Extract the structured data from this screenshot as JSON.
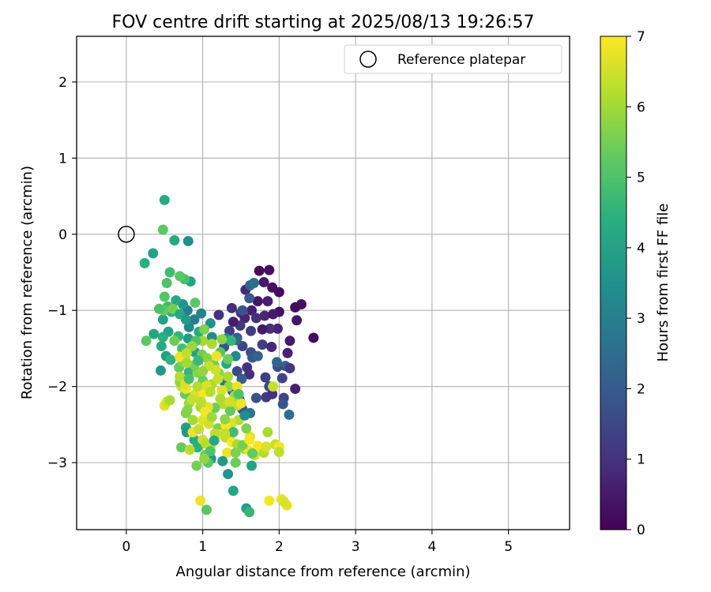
{
  "chart_data": {
    "type": "scatter",
    "title": "FOV centre drift starting at 2025/08/13 19:26:57",
    "xlabel": "Angular distance from reference (arcmin)",
    "ylabel": "Rotation from reference (arcmin)",
    "xlim": [
      -0.65,
      5.8
    ],
    "ylim": [
      -3.88,
      2.6
    ],
    "xticks": [
      0,
      1,
      2,
      3,
      4,
      5
    ],
    "yticks": [
      -3,
      -2,
      -1,
      0,
      1,
      2
    ],
    "xtick_labels": [
      "0",
      "1",
      "2",
      "3",
      "4",
      "5"
    ],
    "ytick_labels": [
      "−3",
      "−2",
      "−1",
      "0",
      "1",
      "2"
    ],
    "grid": true,
    "legend": {
      "placement": "top-right",
      "entries": [
        "Reference platepar"
      ]
    },
    "reference_point": {
      "x": 0,
      "y": 0,
      "label": "Reference platepar"
    },
    "colorbar": {
      "label": "Hours from first FF file",
      "colormap": "viridis",
      "range": [
        0,
        7
      ],
      "ticks": [
        0,
        1,
        2,
        3,
        4,
        5,
        6,
        7
      ],
      "tick_labels": [
        "0",
        "1",
        "2",
        "3",
        "4",
        "5",
        "6",
        "7"
      ]
    },
    "points": [
      [
        1.74,
        -0.48,
        0.2
      ],
      [
        1.87,
        -0.47,
        0.3
      ],
      [
        1.8,
        -0.63,
        0.5
      ],
      [
        1.91,
        -0.7,
        0.3
      ],
      [
        2.0,
        -0.76,
        0.2
      ],
      [
        1.56,
        -0.73,
        0.8
      ],
      [
        1.72,
        -0.88,
        0.4
      ],
      [
        1.85,
        -0.88,
        0.6
      ],
      [
        2.0,
        -1.02,
        0.3
      ],
      [
        1.64,
        -1.0,
        0.6
      ],
      [
        1.5,
        -1.03,
        0.9
      ],
      [
        1.55,
        -1.1,
        0.7
      ],
      [
        1.7,
        -1.1,
        1.0
      ],
      [
        1.81,
        -1.07,
        0.8
      ],
      [
        1.92,
        -1.05,
        0.5
      ],
      [
        2.21,
        -0.96,
        0.2
      ],
      [
        2.29,
        -0.92,
        0.3
      ],
      [
        2.23,
        -1.13,
        0.4
      ],
      [
        2.45,
        -1.36,
        0.2
      ],
      [
        2.14,
        -1.4,
        0.5
      ],
      [
        1.98,
        -1.24,
        0.7
      ],
      [
        1.88,
        -1.24,
        0.9
      ],
      [
        1.78,
        -1.25,
        0.5
      ],
      [
        1.63,
        -1.27,
        1.2
      ],
      [
        1.49,
        -1.2,
        1.1
      ],
      [
        1.4,
        -1.15,
        0.6
      ],
      [
        1.38,
        -0.97,
        0.9
      ],
      [
        1.21,
        -1.06,
        1.0
      ],
      [
        1.35,
        -1.27,
        1.3
      ],
      [
        1.45,
        -1.36,
        2.0
      ],
      [
        1.52,
        -1.47,
        1.5
      ],
      [
        1.63,
        -1.55,
        1.7
      ],
      [
        1.78,
        -1.45,
        1.3
      ],
      [
        1.9,
        -1.48,
        0.8
      ],
      [
        2.11,
        -1.56,
        0.7
      ],
      [
        1.82,
        -1.88,
        1.3
      ],
      [
        1.87,
        -2.0,
        1.5
      ],
      [
        1.83,
        -2.14,
        1.2
      ],
      [
        1.91,
        -2.1,
        1.0
      ],
      [
        2.06,
        -2.15,
        1.4
      ],
      [
        2.05,
        -2.23,
        1.8
      ],
      [
        2.21,
        -2.03,
        0.6
      ],
      [
        2.08,
        -1.73,
        2.1
      ],
      [
        1.98,
        -1.74,
        1.6
      ],
      [
        2.14,
        -1.76,
        1.1
      ],
      [
        2.04,
        -1.89,
        1.4
      ],
      [
        1.97,
        -1.68,
        2.3
      ],
      [
        1.62,
        -0.67,
        2.3
      ],
      [
        1.67,
        -0.64,
        2.5
      ],
      [
        1.61,
        -0.84,
        2.0
      ],
      [
        1.52,
        -1.0,
        1.8
      ],
      [
        1.44,
        -1.39,
        2.4
      ],
      [
        1.28,
        -1.48,
        1.8
      ],
      [
        1.65,
        -1.62,
        1.9
      ],
      [
        1.58,
        -1.75,
        1.0
      ],
      [
        1.45,
        -1.8,
        1.5
      ],
      [
        1.61,
        -1.84,
        0.9
      ],
      [
        1.72,
        -1.6,
        2.2
      ],
      [
        1.39,
        -2.06,
        2.2
      ],
      [
        1.48,
        -2.17,
        1.6
      ],
      [
        1.52,
        -2.3,
        1.9
      ],
      [
        1.62,
        -2.35,
        2.7
      ],
      [
        1.7,
        -2.15,
        1.7
      ],
      [
        2.13,
        -2.37,
        2.5
      ],
      [
        1.51,
        -1.9,
        2.1
      ],
      [
        1.29,
        -1.95,
        2.8
      ],
      [
        1.43,
        -1.6,
        3.2
      ],
      [
        1.12,
        -1.35,
        3.3
      ],
      [
        1.1,
        -1.17,
        3.5
      ],
      [
        1.31,
        -1.37,
        3.6
      ],
      [
        0.98,
        -1.04,
        3.1
      ],
      [
        0.89,
        -1.12,
        2.9
      ],
      [
        0.82,
        -1.22,
        3.2
      ],
      [
        0.8,
        -1.0,
        3.0
      ],
      [
        0.74,
        -0.92,
        3.6
      ],
      [
        0.65,
        -0.87,
        4.2
      ],
      [
        0.84,
        -0.62,
        4.0
      ],
      [
        0.81,
        -0.09,
        3.4
      ],
      [
        0.63,
        -0.08,
        4.2
      ],
      [
        0.76,
        -0.59,
        4.9
      ],
      [
        0.7,
        -0.55,
        5.2
      ],
      [
        0.5,
        0.45,
        4.3
      ],
      [
        0.48,
        0.06,
        5.2
      ],
      [
        0.35,
        -0.25,
        4.0
      ],
      [
        0.24,
        -0.38,
        4.4
      ],
      [
        0.57,
        -0.5,
        4.8
      ],
      [
        0.53,
        -0.64,
        5.0
      ],
      [
        0.5,
        -0.82,
        5.1
      ],
      [
        0.54,
        -0.95,
        4.8
      ],
      [
        0.59,
        -1.02,
        4.5
      ],
      [
        0.48,
        -1.12,
        4.0
      ],
      [
        0.49,
        -1.0,
        5.3
      ],
      [
        0.43,
        -0.98,
        5.0
      ],
      [
        0.61,
        -0.98,
        5.5
      ],
      [
        0.7,
        -1.05,
        4.2
      ],
      [
        0.78,
        -1.12,
        3.8
      ],
      [
        0.9,
        -0.9,
        5.2
      ],
      [
        0.95,
        -1.28,
        4.3
      ],
      [
        1.02,
        -1.25,
        5.6
      ],
      [
        0.81,
        -1.37,
        3.8
      ],
      [
        0.68,
        -1.34,
        4.6
      ],
      [
        0.55,
        -1.28,
        4.0
      ],
      [
        0.48,
        -1.35,
        4.4
      ],
      [
        0.63,
        -1.4,
        5.4
      ],
      [
        0.73,
        -1.5,
        4.9
      ],
      [
        0.52,
        -1.6,
        3.9
      ],
      [
        0.46,
        -1.47,
        4.3
      ],
      [
        0.26,
        -1.4,
        5.2
      ],
      [
        0.36,
        -1.31,
        4.1
      ],
      [
        0.45,
        -1.79,
        3.7
      ],
      [
        0.58,
        -1.65,
        4.5
      ],
      [
        0.69,
        -1.75,
        5.3
      ],
      [
        0.82,
        -1.81,
        4.6
      ],
      [
        0.74,
        -1.68,
        5.6
      ],
      [
        0.9,
        -1.55,
        4.0
      ],
      [
        0.99,
        -1.58,
        5.5
      ],
      [
        1.06,
        -1.63,
        5.7
      ],
      [
        1.15,
        -1.72,
        5.5
      ],
      [
        1.21,
        -1.82,
        5.8
      ],
      [
        1.31,
        -1.7,
        4.2
      ],
      [
        1.33,
        -1.64,
        5.4
      ],
      [
        1.23,
        -1.55,
        5.1
      ],
      [
        1.37,
        -1.4,
        4.6
      ],
      [
        1.25,
        -1.38,
        5.8
      ],
      [
        1.12,
        -1.44,
        6.1
      ],
      [
        1.0,
        -1.4,
        6.0
      ],
      [
        0.91,
        -1.4,
        5.0
      ],
      [
        0.86,
        -1.47,
        5.9
      ],
      [
        0.77,
        -1.62,
        6.5
      ],
      [
        0.7,
        -1.61,
        6.8
      ],
      [
        0.79,
        -1.56,
        6.3
      ],
      [
        0.93,
        -1.82,
        5.7
      ],
      [
        1.0,
        -1.92,
        5.4
      ],
      [
        1.12,
        -1.97,
        6.1
      ],
      [
        1.2,
        -1.9,
        6.4
      ],
      [
        1.34,
        -2.0,
        5.8
      ],
      [
        1.42,
        -2.12,
        6.0
      ],
      [
        1.45,
        -2.25,
        6.4
      ],
      [
        1.5,
        -2.22,
        6.8
      ],
      [
        1.36,
        -2.32,
        5.3
      ],
      [
        1.27,
        -2.23,
        6.2
      ],
      [
        1.16,
        -2.28,
        5.4
      ],
      [
        1.07,
        -2.27,
        6.7
      ],
      [
        0.97,
        -2.27,
        6.1
      ],
      [
        0.82,
        -2.22,
        5.9
      ],
      [
        0.77,
        -2.1,
        5.3
      ],
      [
        0.72,
        -2.0,
        6.5
      ],
      [
        0.78,
        -2.03,
        6.9
      ],
      [
        0.9,
        -2.1,
        6.6
      ],
      [
        1.01,
        -2.08,
        6.9
      ],
      [
        1.07,
        -2.07,
        7.0
      ],
      [
        1.05,
        -1.99,
        6.6
      ],
      [
        0.93,
        -2.0,
        6.2
      ],
      [
        0.7,
        -1.94,
        5.8
      ],
      [
        0.78,
        -2.35,
        5.6
      ],
      [
        0.8,
        -2.31,
        5.7
      ],
      [
        0.87,
        -2.44,
        6.0
      ],
      [
        0.78,
        -2.54,
        4.0
      ],
      [
        0.79,
        -2.6,
        3.7
      ],
      [
        0.89,
        -2.7,
        4.3
      ],
      [
        0.93,
        -2.8,
        4.4
      ],
      [
        1.0,
        -2.7,
        6.5
      ],
      [
        1.04,
        -2.75,
        6.2
      ],
      [
        1.1,
        -2.8,
        6.3
      ],
      [
        1.03,
        -2.9,
        5.5
      ],
      [
        1.11,
        -2.95,
        3.8
      ],
      [
        1.07,
        -3.0,
        5.2
      ],
      [
        0.92,
        -3.04,
        5.5
      ],
      [
        0.72,
        -2.8,
        5.3
      ],
      [
        0.83,
        -2.83,
        6.2
      ],
      [
        0.87,
        -2.6,
        6.8
      ],
      [
        0.95,
        -2.56,
        6.4
      ],
      [
        1.0,
        -2.44,
        6.7
      ],
      [
        1.08,
        -2.49,
        6.5
      ],
      [
        1.03,
        -2.33,
        6.9
      ],
      [
        1.12,
        -2.4,
        6.0
      ],
      [
        1.2,
        -2.55,
        5.6
      ],
      [
        1.24,
        -2.63,
        6.8
      ],
      [
        1.3,
        -2.67,
        6.3
      ],
      [
        1.38,
        -2.73,
        7.0
      ],
      [
        1.45,
        -2.76,
        6.1
      ],
      [
        1.55,
        -2.82,
        5.9
      ],
      [
        1.6,
        -2.84,
        6.8
      ],
      [
        1.68,
        -2.9,
        6.5
      ],
      [
        1.72,
        -2.78,
        6.9
      ],
      [
        1.8,
        -2.87,
        6.2
      ],
      [
        1.83,
        -2.79,
        6.6
      ],
      [
        1.95,
        -2.76,
        6.4
      ],
      [
        2.0,
        -2.79,
        6.9
      ],
      [
        2.0,
        -2.86,
        6.3
      ],
      [
        1.85,
        -2.6,
        6.1
      ],
      [
        1.62,
        -2.66,
        6.7
      ],
      [
        1.57,
        -2.55,
        5.6
      ],
      [
        1.47,
        -2.44,
        6.2
      ],
      [
        1.38,
        -2.48,
        6.6
      ],
      [
        1.3,
        -2.51,
        6.9
      ],
      [
        1.29,
        -2.43,
        5.8
      ],
      [
        1.4,
        -2.6,
        4.8
      ],
      [
        1.29,
        -2.62,
        6.4
      ],
      [
        1.32,
        -2.87,
        6.8
      ],
      [
        1.26,
        -2.98,
        3.7
      ],
      [
        1.33,
        -3.15,
        3.6
      ],
      [
        1.43,
        -3.0,
        5.4
      ],
      [
        1.43,
        -2.87,
        5.6
      ],
      [
        1.52,
        -2.77,
        5.5
      ],
      [
        1.61,
        -2.7,
        6.9
      ],
      [
        1.64,
        -3.04,
        4.0
      ],
      [
        1.57,
        -3.6,
        3.9
      ],
      [
        1.61,
        -3.65,
        4.6
      ],
      [
        1.4,
        -3.37,
        4.1
      ],
      [
        0.97,
        -3.5,
        6.8
      ],
      [
        1.05,
        -3.62,
        5.2
      ],
      [
        1.1,
        -2.85,
        5.0
      ],
      [
        1.16,
        -2.62,
        6.3
      ],
      [
        1.25,
        -2.05,
        6.6
      ],
      [
        1.33,
        -1.87,
        6.1
      ],
      [
        1.18,
        -1.6,
        6.8
      ],
      [
        1.17,
        -1.78,
        6.5
      ],
      [
        1.08,
        -1.73,
        6.4
      ],
      [
        1.0,
        -1.8,
        5.8
      ],
      [
        0.89,
        -1.72,
        5.5
      ],
      [
        0.79,
        -1.69,
        6.0
      ],
      [
        0.7,
        -1.87,
        6.2
      ],
      [
        0.77,
        -1.97,
        6.6
      ],
      [
        0.86,
        -2.17,
        6.4
      ],
      [
        0.98,
        -2.2,
        6.3
      ],
      [
        1.1,
        -2.07,
        6.2
      ],
      [
        1.23,
        -2.16,
        6.1
      ],
      [
        1.35,
        -2.2,
        6.5
      ],
      [
        1.45,
        -2.0,
        6.8
      ],
      [
        0.5,
        -2.25,
        6.7
      ],
      [
        0.53,
        -2.2,
        6.5
      ],
      [
        0.57,
        -2.18,
        6.1
      ],
      [
        1.87,
        -3.5,
        6.9
      ],
      [
        2.03,
        -3.48,
        6.8
      ],
      [
        2.1,
        -3.56,
        6.7
      ],
      [
        2.06,
        -3.51,
        6.6
      ],
      [
        0.82,
        -1.9,
        4.9
      ],
      [
        0.94,
        -1.66,
        4.7
      ],
      [
        1.47,
        -2.1,
        5.0
      ],
      [
        1.15,
        -2.71,
        4.2
      ],
      [
        1.55,
        -2.38,
        3.4
      ],
      [
        1.02,
        -2.95,
        5.8
      ],
      [
        1.65,
        -2.88,
        5.3
      ],
      [
        1.92,
        -2.0,
        6.4
      ]
    ]
  }
}
